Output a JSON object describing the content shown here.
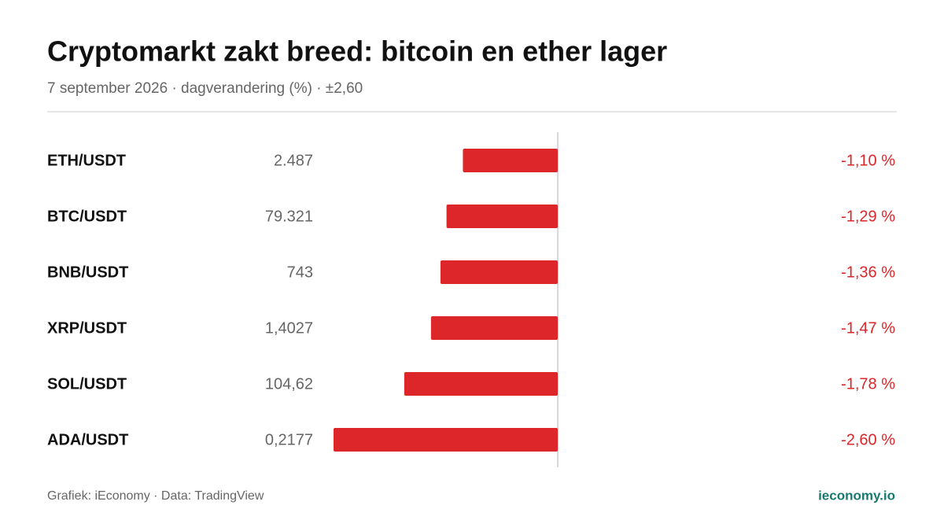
{
  "chart_data": {
    "type": "bar",
    "orientation": "horizontal",
    "title": "Cryptomarkt zakt breed: bitcoin en ether lager",
    "subtitle": "7 september 2026 · dagverandering (%) · ±2,60",
    "categories": [
      "ETH/USDT",
      "BTC/USDT",
      "BNB/USDT",
      "XRP/USDT",
      "SOL/USDT",
      "ADA/USDT"
    ],
    "prices": [
      "2.487",
      "79.321",
      "743",
      "1,4027",
      "104,62",
      "0,2177"
    ],
    "values": [
      -1.1,
      -1.29,
      -1.36,
      -1.47,
      -1.78,
      -2.6
    ],
    "value_labels": [
      "-1,10 %",
      "-1,29 %",
      "-1,36 %",
      "-1,47 %",
      "-1,78 %",
      "-2,60 %"
    ],
    "color": "#dc2629",
    "xlim": [
      -2.6,
      2.6
    ],
    "source": "Grafiek: iEconomy · Data: TradingView",
    "brand": "ieconomy.io"
  }
}
